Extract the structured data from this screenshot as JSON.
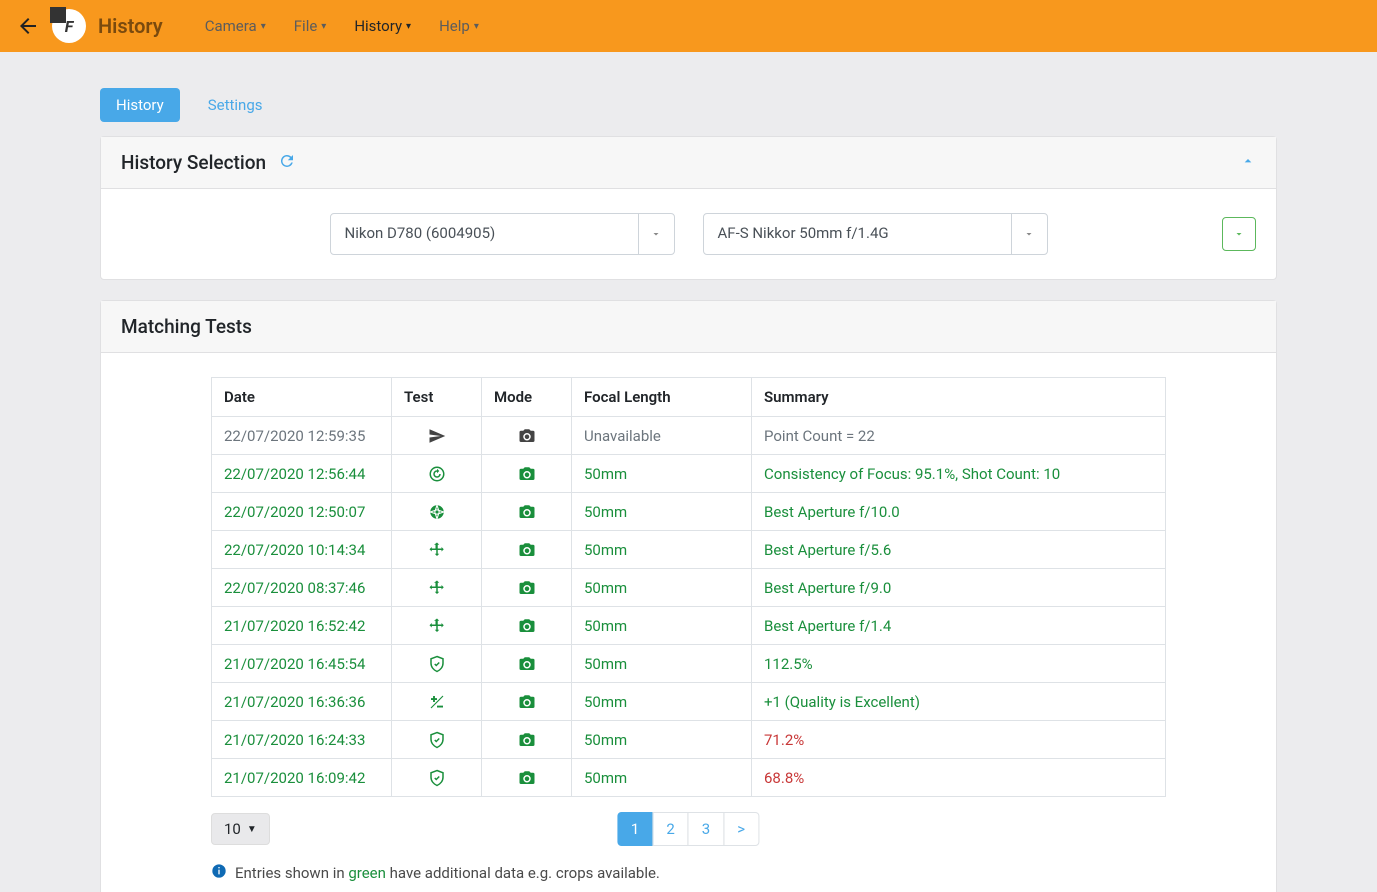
{
  "topbar": {
    "title": "History",
    "menu": [
      {
        "label": "Camera",
        "active": false
      },
      {
        "label": "File",
        "active": false
      },
      {
        "label": "History",
        "active": true
      },
      {
        "label": "Help",
        "active": false
      }
    ]
  },
  "tabs": [
    {
      "label": "History",
      "active": true
    },
    {
      "label": "Settings",
      "active": false
    }
  ],
  "selection": {
    "title": "History Selection",
    "camera": "Nikon D780 (6004905)",
    "lens": "AF-S Nikkor 50mm f/1.4G"
  },
  "tests": {
    "title": "Matching Tests",
    "columns": [
      "Date",
      "Test",
      "Mode",
      "Focal Length",
      "Summary"
    ],
    "rows": [
      {
        "date": "22/07/2020 12:59:35",
        "test": "send",
        "mode": "dark",
        "focal": "Unavailable",
        "summary": "Point Count = 22",
        "green": false,
        "red": false
      },
      {
        "date": "22/07/2020 12:56:44",
        "test": "refresh",
        "mode": "green",
        "focal": "50mm",
        "summary": "Consistency of Focus: 95.1%, Shot Count: 10",
        "green": true,
        "red": false
      },
      {
        "date": "22/07/2020 12:50:07",
        "test": "aperture",
        "mode": "green",
        "focal": "50mm",
        "summary": "Best Aperture f/10.0",
        "green": true,
        "red": false
      },
      {
        "date": "22/07/2020 10:14:34",
        "test": "move",
        "mode": "green",
        "focal": "50mm",
        "summary": "Best Aperture f/5.6",
        "green": true,
        "red": false
      },
      {
        "date": "22/07/2020 08:37:46",
        "test": "move",
        "mode": "green",
        "focal": "50mm",
        "summary": "Best Aperture f/9.0",
        "green": true,
        "red": false
      },
      {
        "date": "21/07/2020 16:52:42",
        "test": "move",
        "mode": "green",
        "focal": "50mm",
        "summary": "Best Aperture f/1.4",
        "green": true,
        "red": false
      },
      {
        "date": "21/07/2020 16:45:54",
        "test": "shield",
        "mode": "green",
        "focal": "50mm",
        "summary": "112.5%",
        "green": true,
        "red": false
      },
      {
        "date": "21/07/2020 16:36:36",
        "test": "plusminus",
        "mode": "green",
        "focal": "50mm",
        "summary": "+1 (Quality is Excellent)",
        "green": true,
        "red": false
      },
      {
        "date": "21/07/2020 16:24:33",
        "test": "shield",
        "mode": "green",
        "focal": "50mm",
        "summary": "71.2%",
        "green": true,
        "red": true
      },
      {
        "date": "21/07/2020 16:09:42",
        "test": "shield",
        "mode": "green",
        "focal": "50mm",
        "summary": "68.8%",
        "green": true,
        "red": true
      }
    ],
    "page_size": "10",
    "pages": [
      "1",
      "2",
      "3",
      ">"
    ],
    "active_page": "1",
    "info_prefix": "Entries shown in ",
    "info_green": "green",
    "info_suffix": " have additional data e.g. crops available."
  },
  "colors": {
    "brand": "#f8981d",
    "primary": "#48a8e8",
    "green": "#1a8f3c",
    "red": "#c83737"
  }
}
